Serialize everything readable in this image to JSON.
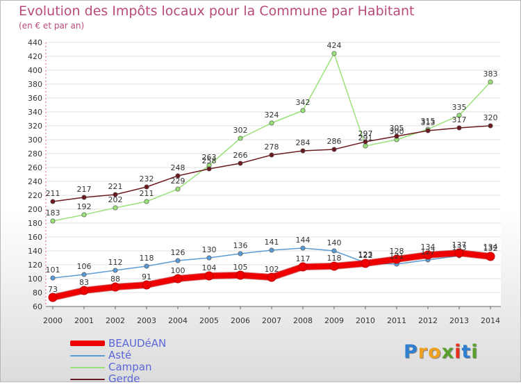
{
  "header": {
    "title": "Evolution des Impôts locaux pour la Commune par Habitant",
    "subtitle": "(en € et par an)"
  },
  "chart_data": {
    "type": "line",
    "title": "Evolution des Impôts locaux pour la Commune par Habitant",
    "subtitle": "(en € et par an)",
    "xlabel": "",
    "ylabel": "",
    "x": [
      "2000",
      "2001",
      "2002",
      "2003",
      "2004",
      "2005",
      "2006",
      "2007",
      "2008",
      "2009",
      "2010",
      "2011",
      "2012",
      "2013",
      "2014"
    ],
    "ylim": [
      60,
      440
    ],
    "yticks": [
      60,
      80,
      100,
      120,
      140,
      160,
      180,
      200,
      220,
      240,
      260,
      280,
      300,
      320,
      340,
      360,
      380,
      400,
      420,
      440
    ],
    "grid": "horizontal",
    "legend_position": "bottom-left",
    "series": [
      {
        "name": "BEAUDéAN",
        "color": "#ee0000",
        "values": [
          73,
          83,
          88,
          91,
          100,
          104,
          105,
          102,
          117,
          118,
          122,
          128,
          134,
          137,
          132
        ]
      },
      {
        "name": "Asté",
        "color": "#5b9bd5",
        "values": [
          101,
          106,
          112,
          118,
          126,
          130,
          136,
          141,
          144,
          140,
          123,
          121,
          127,
          133,
          134
        ]
      },
      {
        "name": "Campan",
        "color": "#99e27a",
        "values": [
          183,
          192,
          202,
          211,
          229,
          263,
          302,
          324,
          342,
          424,
          291,
          300,
          315,
          335,
          383
        ]
      },
      {
        "name": "Gerde",
        "color": "#6b1a20",
        "values": [
          211,
          217,
          221,
          232,
          248,
          258,
          266,
          278,
          284,
          286,
          297,
          305,
          313,
          317,
          320
        ]
      }
    ]
  },
  "legend": {
    "items": [
      {
        "label": "BEAUDéAN",
        "color": "#ee0000"
      },
      {
        "label": "Asté",
        "color": "#5b9bd5"
      },
      {
        "label": "Campan",
        "color": "#99e27a"
      },
      {
        "label": "Gerde",
        "color": "#6b1a20"
      }
    ]
  },
  "logo": {
    "letters": [
      "P",
      "r",
      "o",
      "x",
      "i",
      "t",
      "i"
    ],
    "colors": [
      "#2f7fd0",
      "#f0a020",
      "#f0a020",
      "#5aa02c",
      "#e8301c",
      "#2f7fd0",
      "#5aa02c"
    ]
  }
}
